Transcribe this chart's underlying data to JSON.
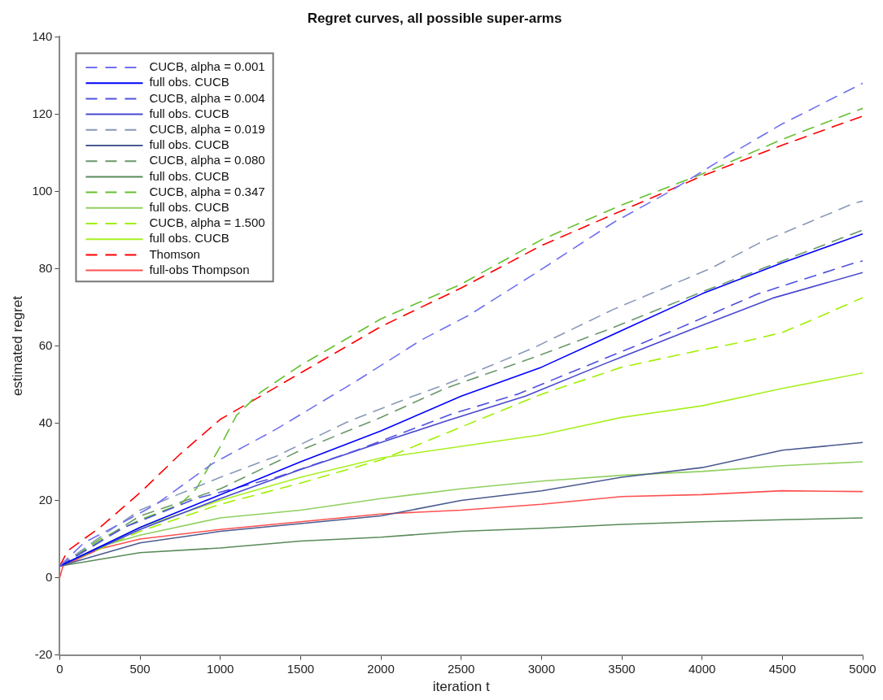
{
  "chart_data": {
    "type": "line",
    "title": "Regret curves, all possible super-arms",
    "xlabel": "iteration t",
    "ylabel": "estimated regret",
    "xlim": [
      0,
      5000
    ],
    "xticks": [
      0,
      500,
      1000,
      1500,
      2000,
      2500,
      3000,
      3500,
      4000,
      4500,
      5000
    ],
    "ylim": [
      -20,
      140
    ],
    "yticks": [
      -20,
      0,
      20,
      40,
      60,
      80,
      100,
      120,
      140
    ],
    "grid": false,
    "legend": "top left",
    "marker": "none",
    "series": [
      {
        "name": "CUCB, alpha = 0.001",
        "color": "#7070f0",
        "line_style": "dashed",
        "x": [
          0,
          150,
          400,
          600,
          950,
          1350,
          1850,
          2250,
          2550,
          2950,
          3450,
          3800,
          4150,
          4500,
          5000
        ],
        "values": [
          3,
          9,
          14.5,
          19,
          29.5,
          38.5,
          51,
          61.5,
          68,
          78.5,
          92,
          100,
          109,
          117.5,
          128
        ]
      },
      {
        "name": "full obs. CUCB",
        "color": "#0000ff",
        "line_style": "solid",
        "x": [
          0,
          250,
          500,
          1000,
          1500,
          2000,
          2500,
          3000,
          3500,
          4000,
          4500,
          5000
        ],
        "values": [
          3,
          8,
          13,
          21.5,
          30,
          38,
          47,
          54.5,
          64,
          73.5,
          81.5,
          89
        ]
      },
      {
        "name": "CUCB, alpha = 0.004",
        "color": "#5050e0",
        "line_style": "dashed",
        "x": [
          0,
          400,
          850,
          1350,
          1850,
          2450,
          2850,
          3350,
          3850,
          4350,
          4950,
          5000
        ],
        "values": [
          3,
          13,
          20.5,
          26,
          33,
          42.5,
          47.5,
          56,
          64.5,
          73.5,
          81.5,
          82
        ]
      },
      {
        "name": "full obs. CUCB",
        "color": "#4848d0",
        "line_style": "solid",
        "x": [
          0,
          500,
          1000,
          1500,
          2000,
          2400,
          2900,
          3400,
          3950,
          4450,
          5000
        ],
        "values": [
          3,
          12.5,
          20.5,
          28,
          35,
          40.5,
          47,
          55.5,
          64.5,
          72.5,
          79
        ]
      },
      {
        "name": "CUCB, alpha = 0.019",
        "color": "#8898b8",
        "line_style": "dashed",
        "x": [
          0,
          250,
          500,
          1000,
          1350,
          1800,
          2200,
          2400,
          2950,
          3450,
          4050,
          4350,
          4950,
          5000
        ],
        "values": [
          3,
          10.5,
          17.5,
          26,
          31.5,
          40.5,
          47,
          50,
          59.5,
          69.5,
          80,
          86.5,
          97,
          97.5
        ]
      },
      {
        "name": "full obs. CUCB",
        "color": "#4a5a90",
        "line_style": "solid",
        "x": [
          0,
          500,
          1000,
          1500,
          2000,
          2500,
          3000,
          3500,
          4000,
          4500,
          5000
        ],
        "values": [
          3,
          9,
          12,
          14,
          16,
          20,
          22.5,
          26,
          28.5,
          33,
          35
        ]
      },
      {
        "name": "CUCB, alpha = 0.080",
        "color": "#6a986a",
        "line_style": "dashed",
        "x": [
          0,
          500,
          1000,
          1500,
          2000,
          2400,
          2950,
          3400,
          4000,
          4500,
          5000
        ],
        "values": [
          3,
          16,
          23,
          33,
          41.5,
          49,
          57,
          64,
          74,
          82,
          90
        ]
      },
      {
        "name": "full obs. CUCB",
        "color": "#5a8a5a",
        "line_style": "solid",
        "x": [
          0,
          500,
          1000,
          1500,
          2000,
          2500,
          3000,
          3500,
          4000,
          4500,
          5000
        ],
        "values": [
          3,
          6.5,
          7.7,
          9.5,
          10.5,
          12,
          12.8,
          13.8,
          14.5,
          15,
          15.5
        ]
      },
      {
        "name": "CUCB, alpha = 0.347",
        "color": "#66c030",
        "line_style": "dashed",
        "x": [
          0,
          250,
          500,
          750,
          850,
          1000,
          1100,
          1250,
          1500,
          2000,
          2500,
          3000,
          3500,
          4000,
          4500,
          5000
        ],
        "values": [
          3,
          10,
          15,
          19,
          23,
          34,
          42,
          48,
          55,
          67,
          76,
          87.5,
          96.5,
          104.5,
          113.5,
          121.5
        ]
      },
      {
        "name": "full obs. CUCB",
        "color": "#90d060",
        "line_style": "solid",
        "x": [
          0,
          250,
          500,
          1000,
          1500,
          2000,
          2500,
          3000,
          3500,
          4000,
          4500,
          5000
        ],
        "values": [
          3,
          8,
          11,
          15.5,
          17.5,
          20.5,
          23,
          25,
          26.5,
          27.5,
          29,
          30
        ]
      },
      {
        "name": "CUCB, alpha = 1.500",
        "color": "#a0f000",
        "line_style": "dashed",
        "x": [
          0,
          500,
          1000,
          1500,
          2000,
          2500,
          3000,
          3500,
          4000,
          4250,
          4500,
          4700,
          5000
        ],
        "values": [
          3,
          12,
          19,
          24.5,
          30.5,
          39,
          47.5,
          54.5,
          59,
          61,
          63.5,
          67,
          72.5
        ]
      },
      {
        "name": "full obs. CUCB",
        "color": "#a8f020",
        "line_style": "solid",
        "x": [
          0,
          250,
          500,
          1000,
          1500,
          2000,
          2500,
          3000,
          3500,
          4000,
          4500,
          5000
        ],
        "values": [
          3,
          8,
          13,
          20,
          26,
          31,
          34,
          37,
          41.5,
          44.5,
          49,
          53
        ]
      },
      {
        "name": "Thomson",
        "color": "#ff0000",
        "line_style": "dashed",
        "x": [
          0,
          50,
          250,
          500,
          750,
          1000,
          1500,
          2000,
          2500,
          3000,
          3500,
          4000,
          4500,
          5000
        ],
        "values": [
          3,
          7,
          13,
          22,
          32,
          41,
          53,
          65,
          75,
          86,
          95,
          104,
          112,
          119.5
        ]
      },
      {
        "name": "full-obs Thompson",
        "color": "#ff5050",
        "line_style": "solid",
        "x": [
          0,
          20,
          250,
          500,
          1000,
          1500,
          2000,
          2500,
          3000,
          3500,
          4000,
          4500,
          5000
        ],
        "values": [
          0,
          3,
          7.5,
          10,
          12.5,
          14.5,
          16.5,
          17.5,
          19,
          21,
          21.5,
          22.5,
          22.3
        ]
      }
    ]
  }
}
